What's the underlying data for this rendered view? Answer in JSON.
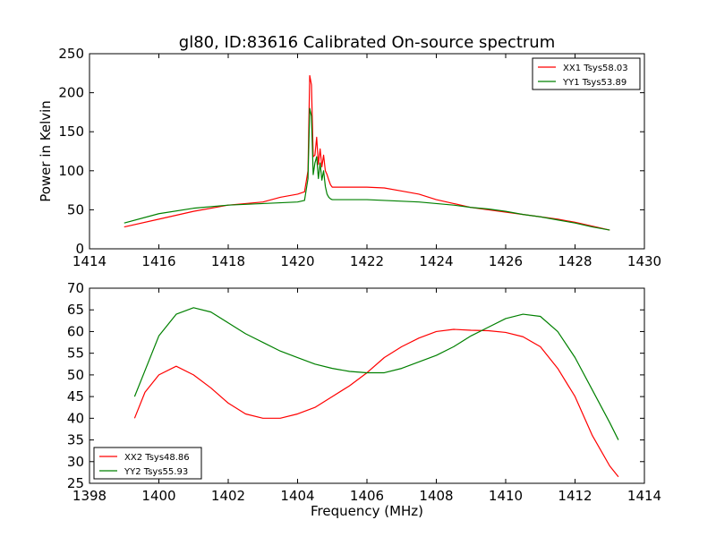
{
  "figure": {
    "title": "gl80, ID:83616 Calibrated On-source spectrum",
    "xlabel": "Frequency (MHz)"
  },
  "colors": {
    "series1": "#ff0000",
    "series2": "#008000",
    "axes": "#000000"
  },
  "chart_data": [
    {
      "type": "line",
      "title": "gl80, ID:83616 Calibrated On-source spectrum",
      "xlabel": "",
      "ylabel": "Power in Kelvin",
      "xlim": [
        1414,
        1430
      ],
      "ylim": [
        0,
        250
      ],
      "xticks": [
        1414,
        1416,
        1418,
        1420,
        1422,
        1424,
        1426,
        1428,
        1430
      ],
      "yticks": [
        0,
        50,
        100,
        150,
        200,
        250
      ],
      "legend": "top-right",
      "series": [
        {
          "name": "XX1 Tsys58.03",
          "color": "#ff0000",
          "x": [
            1415,
            1416,
            1417,
            1418,
            1419,
            1419.5,
            1420,
            1420.2,
            1420.3,
            1420.35,
            1420.4,
            1420.45,
            1420.5,
            1420.55,
            1420.6,
            1420.65,
            1420.7,
            1420.75,
            1420.8,
            1420.85,
            1420.9,
            1420.95,
            1421,
            1421.5,
            1422,
            1422.5,
            1423,
            1423.5,
            1424,
            1424.5,
            1425,
            1425.5,
            1426,
            1426.5,
            1427,
            1427.5,
            1428,
            1428.5,
            1429
          ],
          "y": [
            28,
            38,
            48,
            56,
            60,
            66,
            70,
            73,
            100,
            222,
            210,
            118,
            120,
            143,
            108,
            128,
            105,
            120,
            100,
            95,
            88,
            82,
            79,
            79,
            79,
            78,
            74,
            70,
            63,
            58,
            53,
            50,
            47,
            44,
            41,
            38,
            34,
            29,
            24
          ]
        },
        {
          "name": "YY1 Tsys53.89",
          "color": "#008000",
          "x": [
            1415,
            1416,
            1417,
            1418,
            1419,
            1419.5,
            1420,
            1420.2,
            1420.3,
            1420.35,
            1420.4,
            1420.45,
            1420.5,
            1420.55,
            1420.6,
            1420.65,
            1420.7,
            1420.75,
            1420.8,
            1420.85,
            1420.9,
            1420.95,
            1421,
            1421.5,
            1422,
            1422.5,
            1423,
            1423.5,
            1424,
            1424.5,
            1425,
            1425.5,
            1426,
            1426.5,
            1427,
            1427.5,
            1428,
            1428.5,
            1429
          ],
          "y": [
            33,
            45,
            52,
            56,
            58,
            59,
            60,
            62,
            90,
            180,
            170,
            95,
            110,
            118,
            90,
            110,
            88,
            100,
            80,
            70,
            66,
            64,
            63,
            63,
            63,
            62,
            61,
            60,
            58,
            56,
            53,
            51,
            48,
            44,
            41,
            37,
            33,
            28,
            24
          ]
        }
      ]
    },
    {
      "type": "line",
      "title": "",
      "xlabel": "Frequency (MHz)",
      "ylabel": "",
      "xlim": [
        1398,
        1414
      ],
      "ylim": [
        25,
        70
      ],
      "xticks": [
        1398,
        1400,
        1402,
        1404,
        1406,
        1408,
        1410,
        1412,
        1414
      ],
      "yticks": [
        25,
        30,
        35,
        40,
        45,
        50,
        55,
        60,
        65,
        70
      ],
      "legend": "bottom-left",
      "series": [
        {
          "name": "XX2 Tsys48.86",
          "color": "#ff0000",
          "x": [
            1399.3,
            1399.6,
            1400,
            1400.5,
            1401,
            1401.5,
            1402,
            1402.5,
            1403,
            1403.5,
            1404,
            1404.5,
            1405,
            1405.5,
            1406,
            1406.5,
            1407,
            1407.5,
            1408,
            1408.5,
            1409,
            1409.5,
            1410,
            1410.5,
            1411,
            1411.5,
            1412,
            1412.5,
            1413,
            1413.25
          ],
          "y": [
            40,
            46,
            50,
            52,
            50,
            47,
            43.5,
            41,
            40,
            40,
            41,
            42.5,
            45,
            47.5,
            50.5,
            54,
            56.5,
            58.5,
            60,
            60.5,
            60.3,
            60.2,
            59.8,
            58.8,
            56.5,
            51.5,
            45,
            36,
            29,
            26.5
          ]
        },
        {
          "name": "YY2 Tsys55.93",
          "color": "#008000",
          "x": [
            1399.3,
            1399.6,
            1400,
            1400.5,
            1401,
            1401.5,
            1402,
            1402.5,
            1403,
            1403.5,
            1404,
            1404.5,
            1405,
            1405.5,
            1406,
            1406.5,
            1407,
            1407.5,
            1408,
            1408.5,
            1409,
            1409.5,
            1410,
            1410.5,
            1411,
            1411.5,
            1412,
            1412.5,
            1413,
            1413.25
          ],
          "y": [
            45,
            51,
            59,
            64,
            65.5,
            64.5,
            62,
            59.5,
            57.5,
            55.5,
            54,
            52.5,
            51.5,
            50.8,
            50.5,
            50.5,
            51.5,
            53,
            54.5,
            56.5,
            59,
            61,
            63,
            64,
            63.5,
            60,
            54,
            46.5,
            39,
            35
          ]
        }
      ]
    }
  ]
}
